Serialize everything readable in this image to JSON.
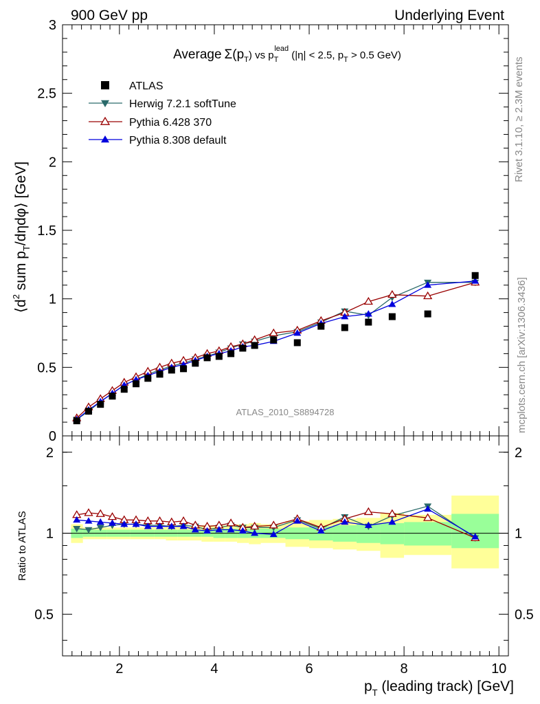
{
  "header": {
    "left": "900 GeV pp",
    "right": "Underlying Event"
  },
  "side": {
    "rivet": "Rivet 3.1.10, ≥ 2.3M events",
    "mcplots": "mcplots.cern.ch [arXiv:1306.3436]"
  },
  "watermark": "ATLAS_2010_S8894728",
  "chart_data": [
    {
      "type": "scatter",
      "title": {
        "main": "Average",
        "sigma": "Σ(p",
        "sigma_sub": "T",
        "vs": ") vs p",
        "lead_sub": "T",
        "lead_sup": "lead",
        "cuts1": " (|η| < 2.5, p",
        "cuts_sub": "T",
        "cuts2": " > 0.5 GeV)"
      },
      "ylabel": {
        "a": "⟨d",
        "sup": "2",
        "b": " sum p",
        "sub": "T",
        "c": "/dηdφ⟩ [GeV]"
      },
      "xlabel": {
        "a": "p",
        "sub": "T",
        "b": " (leading track) [GeV]"
      },
      "xlim": [
        0.8,
        10.2
      ],
      "ylim": [
        0,
        3
      ],
      "y_ticks": [
        "0",
        "0.5",
        "1",
        "1.5",
        "2",
        "2.5",
        "3"
      ],
      "x_ticks": [
        "2",
        "4",
        "6",
        "8",
        "10"
      ],
      "legend_position": "top-left",
      "x": [
        1.1,
        1.35,
        1.6,
        1.85,
        2.1,
        2.35,
        2.6,
        2.85,
        3.1,
        3.35,
        3.6,
        3.85,
        4.1,
        4.35,
        4.6,
        4.85,
        5.25,
        5.75,
        6.25,
        6.75,
        7.25,
        7.75,
        8.5,
        9.5
      ],
      "series": [
        {
          "name": "ATLAS",
          "color": "#000000",
          "marker": "square",
          "values": [
            0.11,
            0.18,
            0.23,
            0.29,
            0.34,
            0.38,
            0.42,
            0.45,
            0.48,
            0.49,
            0.53,
            0.57,
            0.58,
            0.6,
            0.64,
            0.66,
            0.7,
            0.68,
            0.8,
            0.79,
            0.83,
            0.87,
            0.89,
            1.17
          ]
        },
        {
          "name": "Herwig 7.2.1 softTune",
          "color": "#2a6a6a",
          "marker": "triangle-down",
          "values": [
            0.12,
            0.18,
            0.25,
            0.31,
            0.37,
            0.41,
            0.45,
            0.48,
            0.51,
            0.53,
            0.56,
            0.58,
            0.61,
            0.64,
            0.67,
            0.69,
            0.73,
            0.76,
            0.83,
            0.91,
            0.88,
            1.01,
            1.12,
            1.12
          ]
        },
        {
          "name": "Pythia 6.428 370",
          "color": "#990000",
          "marker": "triangle-open",
          "values": [
            0.13,
            0.21,
            0.27,
            0.33,
            0.39,
            0.43,
            0.47,
            0.5,
            0.53,
            0.55,
            0.57,
            0.6,
            0.62,
            0.65,
            0.67,
            0.7,
            0.75,
            0.77,
            0.84,
            0.9,
            0.98,
            1.03,
            1.02,
            1.12
          ]
        },
        {
          "name": "Pythia 8.308 default",
          "color": "#0000dd",
          "marker": "triangle-up",
          "values": [
            0.12,
            0.19,
            0.25,
            0.31,
            0.37,
            0.41,
            0.44,
            0.47,
            0.5,
            0.52,
            0.55,
            0.58,
            0.6,
            0.62,
            0.65,
            0.66,
            0.69,
            0.75,
            0.82,
            0.87,
            0.89,
            0.96,
            1.1,
            1.13
          ]
        }
      ]
    },
    {
      "type": "line",
      "ylabel": "Ratio to ATLAS",
      "ylim": [
        0.35,
        2.3
      ],
      "y_ticks": [
        "0.5",
        "1",
        "2"
      ],
      "x": [
        1.1,
        1.35,
        1.6,
        1.85,
        2.1,
        2.35,
        2.6,
        2.85,
        3.1,
        3.35,
        3.6,
        3.85,
        4.1,
        4.35,
        4.6,
        4.85,
        5.25,
        5.75,
        6.25,
        6.75,
        7.25,
        7.75,
        8.5,
        9.5
      ],
      "band_edges": [
        0.98,
        1.23,
        1.48,
        1.73,
        1.98,
        2.23,
        2.48,
        2.73,
        2.98,
        3.23,
        3.48,
        3.73,
        3.98,
        4.23,
        4.48,
        4.73,
        4.98,
        5.5,
        6.0,
        6.5,
        7.0,
        7.5,
        8.0,
        9.0,
        10.0
      ],
      "stat_band": {
        "color": "#99ff99",
        "low": [
          0.96,
          0.97,
          0.97,
          0.97,
          0.97,
          0.97,
          0.97,
          0.97,
          0.97,
          0.97,
          0.97,
          0.97,
          0.96,
          0.96,
          0.96,
          0.96,
          0.96,
          0.95,
          0.94,
          0.93,
          0.92,
          0.91,
          0.9,
          0.88
        ],
        "high": [
          1.04,
          1.03,
          1.03,
          1.03,
          1.03,
          1.03,
          1.03,
          1.03,
          1.03,
          1.03,
          1.03,
          1.03,
          1.04,
          1.04,
          1.04,
          1.04,
          1.04,
          1.05,
          1.06,
          1.07,
          1.08,
          1.09,
          1.1,
          1.18
        ]
      },
      "total_band": {
        "color": "#ffff99",
        "low": [
          0.92,
          0.95,
          0.95,
          0.95,
          0.95,
          0.95,
          0.95,
          0.95,
          0.94,
          0.94,
          0.94,
          0.93,
          0.93,
          0.93,
          0.92,
          0.91,
          0.92,
          0.89,
          0.88,
          0.87,
          0.86,
          0.81,
          0.83,
          0.74
        ],
        "high": [
          1.08,
          1.05,
          1.05,
          1.05,
          1.05,
          1.05,
          1.05,
          1.05,
          1.06,
          1.06,
          1.06,
          1.07,
          1.07,
          1.07,
          1.08,
          1.09,
          1.08,
          1.11,
          1.12,
          1.13,
          1.14,
          1.19,
          1.17,
          1.38
        ]
      },
      "series": [
        {
          "name": "Herwig 7.2.1 softTune",
          "color": "#2a6a6a",
          "marker": "triangle-down",
          "values": [
            1.04,
            1.03,
            1.05,
            1.07,
            1.08,
            1.08,
            1.07,
            1.07,
            1.06,
            1.07,
            1.06,
            1.03,
            1.05,
            1.07,
            1.05,
            1.05,
            1.05,
            1.12,
            1.04,
            1.15,
            1.06,
            1.16,
            1.26,
            0.96
          ]
        },
        {
          "name": "Pythia 6.428 370",
          "color": "#990000",
          "marker": "triangle-open",
          "values": [
            1.17,
            1.19,
            1.18,
            1.15,
            1.12,
            1.12,
            1.11,
            1.11,
            1.1,
            1.11,
            1.07,
            1.06,
            1.07,
            1.09,
            1.05,
            1.06,
            1.07,
            1.13,
            1.05,
            1.13,
            1.2,
            1.18,
            1.14,
            0.96
          ]
        },
        {
          "name": "Pythia 8.308 default",
          "color": "#0000dd",
          "marker": "triangle-up",
          "values": [
            1.12,
            1.11,
            1.1,
            1.09,
            1.08,
            1.08,
            1.06,
            1.06,
            1.06,
            1.06,
            1.03,
            1.02,
            1.03,
            1.03,
            1.02,
            1.0,
            0.99,
            1.11,
            1.02,
            1.1,
            1.07,
            1.1,
            1.23,
            0.97
          ]
        }
      ]
    }
  ]
}
